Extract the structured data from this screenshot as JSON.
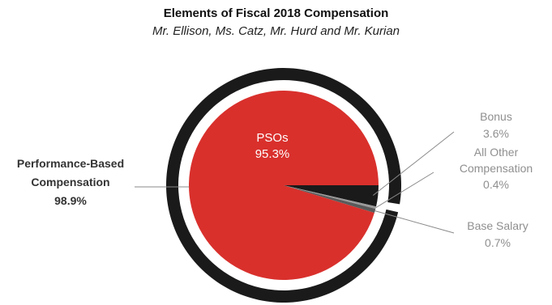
{
  "chart_data": {
    "type": "pie",
    "title": "Elements of Fiscal 2018 Compensation",
    "subtitle": "Mr. Ellison, Ms. Catz, Mr. Hurd and Mr. Kurian",
    "slices": [
      {
        "label": "PSOs",
        "value": 95.3,
        "value_label": "95.3%",
        "color": "#d9302c"
      },
      {
        "label": "Bonus",
        "value": 3.6,
        "value_label": "3.6%",
        "color": "#1a1a1a"
      },
      {
        "label": "All Other Compensation",
        "value": 0.4,
        "value_label": "0.4%",
        "color": "#9a9a9a"
      },
      {
        "label": "Base Salary",
        "value": 0.7,
        "value_label": "0.7%",
        "color": "#5a5a5a"
      }
    ],
    "outer_ring": {
      "label": "Performance-Based Compensation",
      "value": 98.9,
      "value_label": "98.9%",
      "color": "#1a1a1a"
    },
    "labels": {
      "psos": [
        "PSOs",
        "95.3%"
      ],
      "bonus": [
        "Bonus",
        "3.6%"
      ],
      "all_other": [
        "All Other",
        "Compensation",
        "0.4%"
      ],
      "base_salary": [
        "Base Salary",
        "0.7%"
      ],
      "performance_based": [
        "Performance-Based",
        "Compensation",
        "98.9%"
      ]
    }
  }
}
